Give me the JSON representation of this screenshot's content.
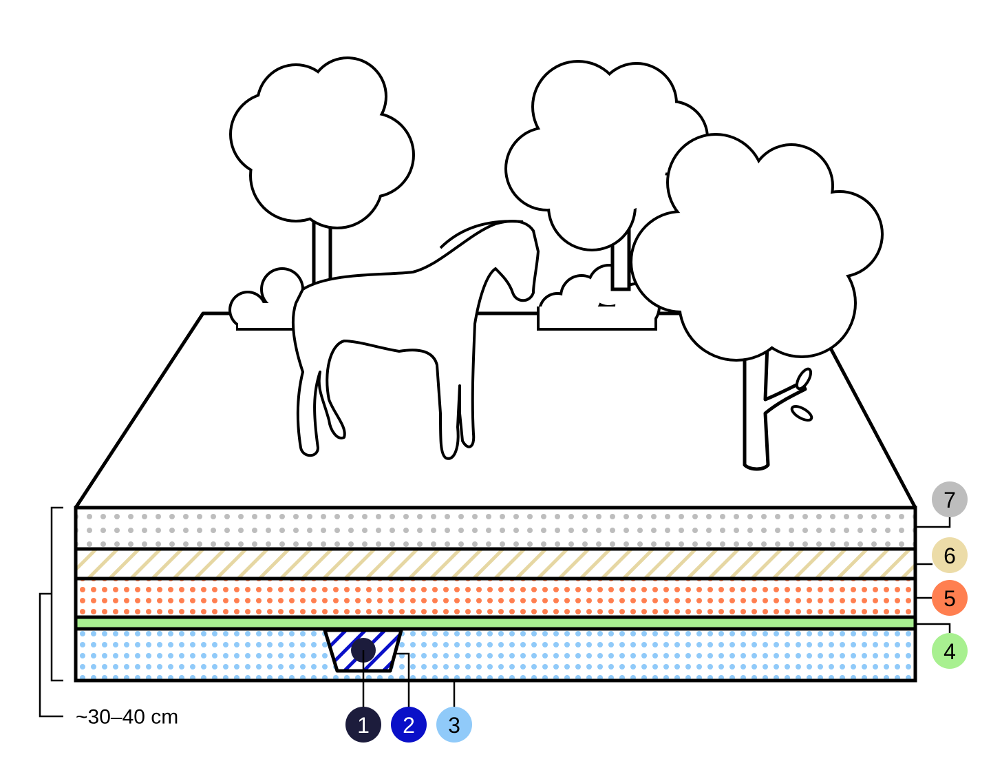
{
  "depth_label": "~30–40 cm",
  "markers": [
    {
      "number": "1",
      "color": "#1c1c3c",
      "text_color": "#ffffff"
    },
    {
      "number": "2",
      "color": "#0a10c8",
      "text_color": "#ffffff"
    },
    {
      "number": "3",
      "color": "#90caf9",
      "text_color": "#000000"
    },
    {
      "number": "4",
      "color": "#a8f090",
      "text_color": "#000000"
    },
    {
      "number": "5",
      "color": "#ff7f50",
      "text_color": "#000000"
    },
    {
      "number": "6",
      "color": "#ecdca8",
      "text_color": "#000000"
    },
    {
      "number": "7",
      "color": "#bdbdbd",
      "text_color": "#000000"
    }
  ],
  "layer_colors": {
    "layer7_dots": "#bdbdbd",
    "layer6_hatch": "#e6d7a3",
    "layer5_dots": "#ff7f50",
    "layer4_fill": "#a8f090",
    "layer3_dots": "#90caf9",
    "trench_hatch": "#0a10c8",
    "pipe": "#1c1c3c"
  }
}
